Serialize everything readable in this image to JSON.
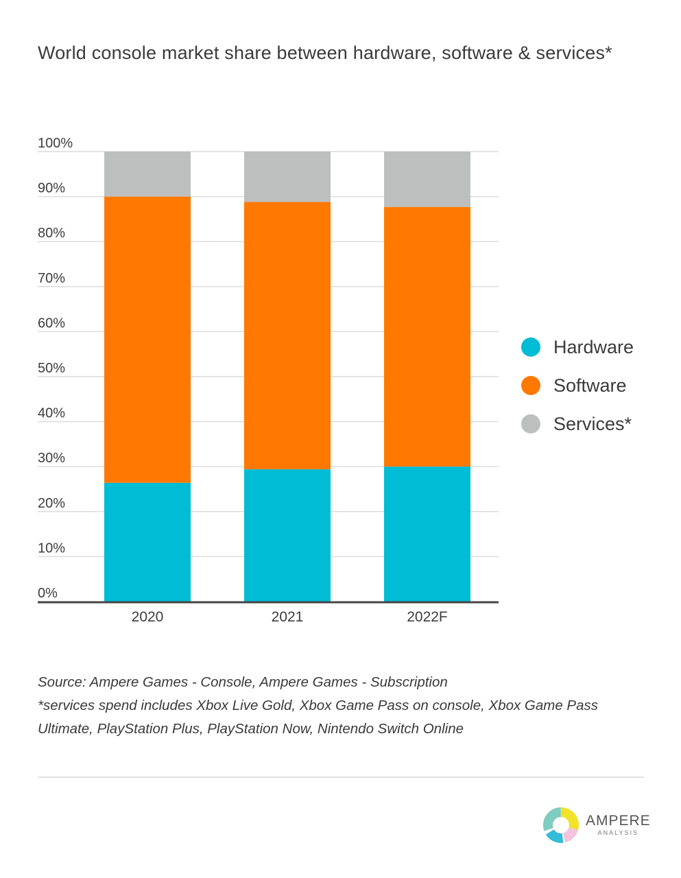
{
  "title": "World console market share between hardware, software & services*",
  "chart_data": {
    "type": "bar",
    "stacked": true,
    "title": "World console market share between hardware, software & services*",
    "categories": [
      "2020",
      "2021",
      "2022F"
    ],
    "series": [
      {
        "name": "Hardware",
        "color": "#00bcd4",
        "values": [
          26.4,
          29.4,
          30.0
        ]
      },
      {
        "name": "Software",
        "color": "#ff7800",
        "values": [
          63.6,
          59.4,
          57.7
        ]
      },
      {
        "name": "Services*",
        "color": "#bdbfbf",
        "values": [
          10.0,
          11.2,
          12.3
        ]
      }
    ],
    "xlabel": "",
    "ylabel": "",
    "ylim": [
      0,
      100
    ],
    "yticks": [
      "0%",
      "10%",
      "20%",
      "30%",
      "40%",
      "50%",
      "60%",
      "70%",
      "80%",
      "90%",
      "100%"
    ],
    "grid": true,
    "legend": "right"
  },
  "legend": [
    {
      "label": "Hardware",
      "color": "#00bcd4"
    },
    {
      "label": "Software",
      "color": "#ff7800"
    },
    {
      "label": "Services*",
      "color": "#bdbfbf"
    }
  ],
  "notes": {
    "source": "Source: Ampere Games - Console, Ampere Games - Subscription",
    "footnote": "*services spend includes Xbox Live Gold, Xbox Game Pass on console, Xbox Game Pass Ultimate, PlayStation Plus, PlayStation Now, Nintendo Switch Online"
  },
  "logo": {
    "main": "AMPERE",
    "sub": "ANALYSIS",
    "colors": [
      "#7ecdc0",
      "#f2e22a",
      "#f4c3dd",
      "#35bcd8"
    ]
  }
}
